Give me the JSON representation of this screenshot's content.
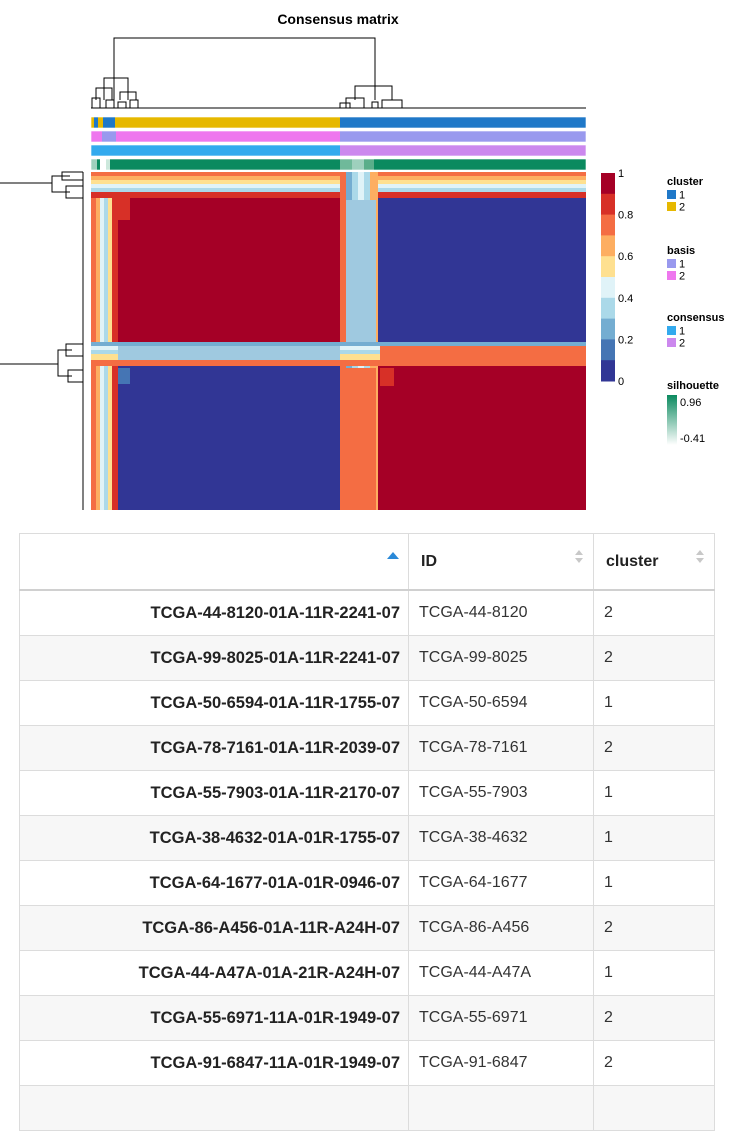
{
  "plot": {
    "title": "Consensus matrix",
    "colorbar": {
      "ticks": [
        "1",
        "0.8",
        "0.6",
        "0.4",
        "0.2",
        "0"
      ],
      "colors": [
        "#a50026",
        "#d73027",
        "#f46d43",
        "#fdae61",
        "#fee090",
        "#e0f3f8",
        "#abd9e9",
        "#74add1",
        "#4575b4",
        "#313695"
      ]
    },
    "legends": [
      {
        "title": "cluster",
        "items": [
          {
            "label": "1",
            "color": "#1f78c8"
          },
          {
            "label": "2",
            "color": "#e6b800"
          }
        ]
      },
      {
        "title": "basis",
        "items": [
          {
            "label": "1",
            "color": "#9999ee"
          },
          {
            "label": "2",
            "color": "#ee77ee"
          }
        ]
      },
      {
        "title": "consensus",
        "items": [
          {
            "label": "1",
            "color": "#33aaee"
          },
          {
            "label": "2",
            "color": "#cc88ee"
          }
        ]
      },
      {
        "title": "silhouette",
        "high": "0.96",
        "low": "-0.41",
        "high_color": "#0b8a5f",
        "low_color": "#ffffff"
      }
    ],
    "palette": {
      "dark_red": "#a50026",
      "dark_blue": "#313695",
      "light_blue": "#9fc9e0",
      "orange": "#f46d43",
      "cluster1": "#1f78c8",
      "cluster2": "#e6b800",
      "basis1": "#9999ee",
      "basis2": "#ee77ee",
      "consensus1": "#33aaee",
      "consensus2": "#cc88ee",
      "silhouette": "#0b8a5f"
    }
  },
  "table": {
    "columns": [
      "",
      "ID",
      "cluster"
    ],
    "rows": [
      {
        "name": "TCGA-44-8120-01A-11R-2241-07",
        "id": "TCGA-44-8120",
        "cluster": "2"
      },
      {
        "name": "TCGA-99-8025-01A-11R-2241-07",
        "id": "TCGA-99-8025",
        "cluster": "2"
      },
      {
        "name": "TCGA-50-6594-01A-11R-1755-07",
        "id": "TCGA-50-6594",
        "cluster": "1"
      },
      {
        "name": "TCGA-78-7161-01A-11R-2039-07",
        "id": "TCGA-78-7161",
        "cluster": "2"
      },
      {
        "name": "TCGA-55-7903-01A-11R-2170-07",
        "id": "TCGA-55-7903",
        "cluster": "1"
      },
      {
        "name": "TCGA-38-4632-01A-01R-1755-07",
        "id": "TCGA-38-4632",
        "cluster": "1"
      },
      {
        "name": "TCGA-64-1677-01A-01R-0946-07",
        "id": "TCGA-64-1677",
        "cluster": "1"
      },
      {
        "name": "TCGA-86-A456-01A-11R-A24H-07",
        "id": "TCGA-86-A456",
        "cluster": "2"
      },
      {
        "name": "TCGA-44-A47A-01A-21R-A24H-07",
        "id": "TCGA-44-A47A",
        "cluster": "1"
      },
      {
        "name": "TCGA-55-6971-11A-01R-1949-07",
        "id": "TCGA-55-6971",
        "cluster": "2"
      },
      {
        "name": "TCGA-91-6847-11A-01R-1949-07",
        "id": "TCGA-91-6847",
        "cluster": "2"
      },
      {
        "name": "",
        "id": "",
        "cluster": ""
      }
    ]
  }
}
